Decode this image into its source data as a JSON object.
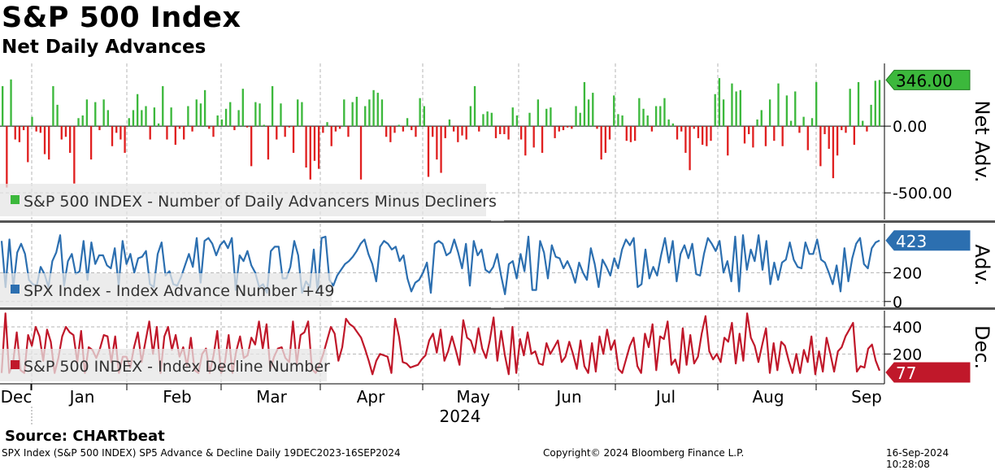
{
  "title": "S&P 500 Index",
  "subtitle": "Net Daily Advances",
  "source": "Source: CHARTbeat",
  "footer": {
    "left": "SPX Index (S&P 500 INDEX) SP5 Advance & Decline  Daily 19DEC2023-16SEP2024",
    "center": "Copyright© 2024 Bloomberg Finance L.P.",
    "right": "16-Sep-2024 10:28:08"
  },
  "colors": {
    "net_positive": "#3cb83c",
    "net_negative": "#e02020",
    "advance_line": "#2c6fb0",
    "decline_line": "#c0182a",
    "grid": "#b4b4b4",
    "separator": "#555555"
  },
  "chart_data": [
    {
      "type": "bar",
      "panel": "net",
      "legend": "S&P 500 INDEX - Number of Daily Advancers Minus Decliners",
      "ylabel": "Net Adv.",
      "yticks": [
        0,
        -500
      ],
      "tick_labels": [
        "0.00",
        "-500.00"
      ],
      "ylim": [
        -700,
        470
      ],
      "last_value_label": "346.00",
      "values": [
        300,
        -460,
        350,
        -100,
        -120,
        -30,
        -270,
        70,
        -40,
        -50,
        -210,
        -250,
        300,
        160,
        -100,
        -80,
        -200,
        -430,
        60,
        80,
        200,
        -250,
        180,
        -30,
        200,
        120,
        -150,
        -50,
        -100,
        -200,
        60,
        120,
        240,
        120,
        150,
        -100,
        140,
        20,
        300,
        -100,
        140,
        -140,
        -20,
        -100,
        150,
        -40,
        200,
        170,
        270,
        -20,
        -80,
        80,
        50,
        130,
        180,
        -30,
        120,
        280,
        -10,
        -300,
        180,
        170,
        10,
        -250,
        300,
        -100,
        170,
        -80,
        -10,
        -200,
        200,
        180,
        -310,
        -400,
        -260,
        -320,
        -50,
        30,
        -150,
        -40,
        -20,
        200,
        -80,
        180,
        220,
        -400,
        150,
        200,
        270,
        250,
        200,
        -80,
        -120,
        -50,
        10,
        -40,
        60,
        -30,
        -80,
        210,
        150,
        -380,
        -80,
        -250,
        -350,
        -90,
        50,
        -40,
        -120,
        -70,
        -100,
        150,
        300,
        -40,
        90,
        110,
        100,
        -90,
        -60,
        -60,
        -100,
        140,
        80,
        -100,
        -220,
        100,
        -160,
        200,
        -200,
        130,
        140,
        -90,
        -40,
        -30,
        -10,
        -20,
        150,
        100,
        330,
        200,
        250,
        -20,
        -250,
        -200,
        -100,
        230,
        90,
        80,
        -110,
        -120,
        -110,
        210,
        130,
        80,
        -40,
        150,
        150,
        210,
        50,
        20,
        -100,
        -40,
        -200,
        -330,
        -20,
        -90,
        -140,
        -150,
        -110,
        240,
        360,
        200,
        -220,
        320,
        260,
        270,
        -130,
        -60,
        -160,
        50,
        120,
        -150,
        200,
        -110,
        320,
        -150,
        230,
        40,
        260,
        -50,
        70,
        -180,
        60,
        330,
        -300,
        -60,
        -170,
        -390,
        -220,
        -30,
        -50,
        280,
        -140,
        330,
        40,
        -40,
        160,
        340,
        346
      ],
      "axis_labels": [
        "Dec",
        "Jan",
        "Feb",
        "Mar",
        "Apr",
        "May",
        "Jun",
        "Jul",
        "Aug",
        "Sep"
      ],
      "year_label": "2024"
    },
    {
      "type": "line",
      "panel": "advance",
      "legend": "SPX Index - Index Advance Number +49",
      "ylabel": "Adv.",
      "yticks": [
        200,
        0
      ],
      "tick_labels": [
        "200",
        "0"
      ],
      "ylim": [
        -35,
        540
      ],
      "last_value_label": "423",
      "values": [
        420,
        100,
        430,
        100,
        340,
        400,
        330,
        150,
        120,
        110,
        240,
        190,
        100,
        280,
        340,
        460,
        110,
        280,
        330,
        190,
        210,
        420,
        150,
        410,
        260,
        320,
        320,
        250,
        230,
        370,
        110,
        420,
        260,
        330,
        200,
        300,
        310,
        350,
        120,
        100,
        330,
        410,
        180,
        210,
        120,
        110,
        170,
        250,
        330,
        240,
        440,
        130,
        420,
        440,
        400,
        320,
        390,
        420,
        370,
        440,
        80,
        320,
        280,
        350,
        250,
        200,
        100,
        120,
        60,
        350,
        380,
        380,
        160,
        160,
        240,
        420,
        320,
        60,
        140,
        100,
        360,
        60,
        440,
        450,
        150,
        110,
        180,
        220,
        260,
        280,
        310,
        350,
        400,
        430,
        330,
        260,
        140,
        380,
        420,
        400,
        360,
        380,
        280,
        320,
        160,
        70,
        130,
        150,
        200,
        270,
        60,
        400,
        420,
        400,
        320,
        340,
        430,
        340,
        230,
        400,
        110,
        420,
        320,
        360,
        220,
        200,
        240,
        330,
        180,
        50,
        260,
        280,
        160,
        330,
        210,
        450,
        80,
        80,
        420,
        340,
        160,
        390,
        310,
        300,
        230,
        280,
        220,
        130,
        270,
        200,
        150,
        370,
        260,
        100,
        290,
        240,
        180,
        300,
        230,
        360,
        430,
        390,
        440,
        100,
        120,
        360,
        160,
        240,
        180,
        320,
        440,
        270,
        420,
        140,
        330,
        390,
        300,
        400,
        190,
        180,
        330,
        440,
        400,
        350,
        420,
        200,
        280,
        140,
        450,
        70,
        460,
        220,
        360,
        280,
        460,
        220,
        420,
        120,
        270,
        150,
        270,
        290,
        410,
        290,
        240,
        230,
        410,
        330,
        330,
        430,
        290,
        270,
        200,
        120,
        250,
        70,
        370,
        140,
        300,
        400,
        440,
        260,
        230,
        370,
        410,
        423
      ]
    },
    {
      "type": "line",
      "panel": "decline",
      "legend": "S&P 500 INDEX - Index Decline Number",
      "ylabel": "Dec.",
      "yticks": [
        400,
        200
      ],
      "tick_labels": [
        "400",
        "200"
      ],
      "ylim": [
        -20,
        520
      ],
      "last_value_label": "77",
      "values": [
        60,
        500,
        60,
        130,
        360,
        80,
        60,
        340,
        260,
        400,
        330,
        150,
        380,
        290,
        60,
        170,
        330,
        400,
        360,
        340,
        140,
        370,
        60,
        250,
        230,
        170,
        240,
        340,
        330,
        140,
        330,
        60,
        180,
        180,
        100,
        250,
        360,
        140,
        290,
        440,
        200,
        400,
        60,
        330,
        400,
        230,
        340,
        180,
        250,
        110,
        320,
        80,
        60,
        200,
        240,
        60,
        190,
        370,
        60,
        140,
        340,
        60,
        220,
        330,
        170,
        190,
        320,
        270,
        440,
        240,
        420,
        90,
        180,
        240,
        250,
        170,
        140,
        440,
        130,
        340,
        360,
        440,
        90,
        60,
        120,
        200,
        300,
        400,
        350,
        150,
        250,
        460,
        420,
        400,
        360,
        320,
        240,
        150,
        50,
        150,
        200,
        190,
        180,
        60,
        460,
        330,
        140,
        130,
        100,
        110,
        120,
        160,
        190,
        300,
        350,
        210,
        380,
        150,
        220,
        330,
        230,
        120,
        450,
        320,
        300,
        210,
        390,
        240,
        170,
        300,
        470,
        150,
        370,
        190,
        50,
        400,
        60,
        310,
        190,
        360,
        200,
        220,
        130,
        120,
        280,
        200,
        250,
        300,
        140,
        180,
        290,
        200,
        90,
        300,
        110,
        60,
        280,
        70,
        330,
        200,
        380,
        230,
        300,
        90,
        60,
        160,
        260,
        320,
        110,
        60,
        350,
        250,
        420,
        80,
        330,
        310,
        440,
        120,
        160,
        60,
        390,
        120,
        340,
        130,
        180,
        350,
        480,
        220,
        160,
        200,
        140,
        320,
        290,
        430,
        130,
        350,
        150,
        500,
        320,
        260,
        140,
        270,
        390,
        60,
        280,
        80,
        290,
        260,
        150,
        60,
        200,
        60,
        230,
        140,
        330,
        50,
        220,
        70,
        320,
        200,
        70,
        220,
        250,
        330,
        380,
        430,
        70,
        110,
        100,
        240,
        270,
        150,
        77
      ]
    }
  ]
}
